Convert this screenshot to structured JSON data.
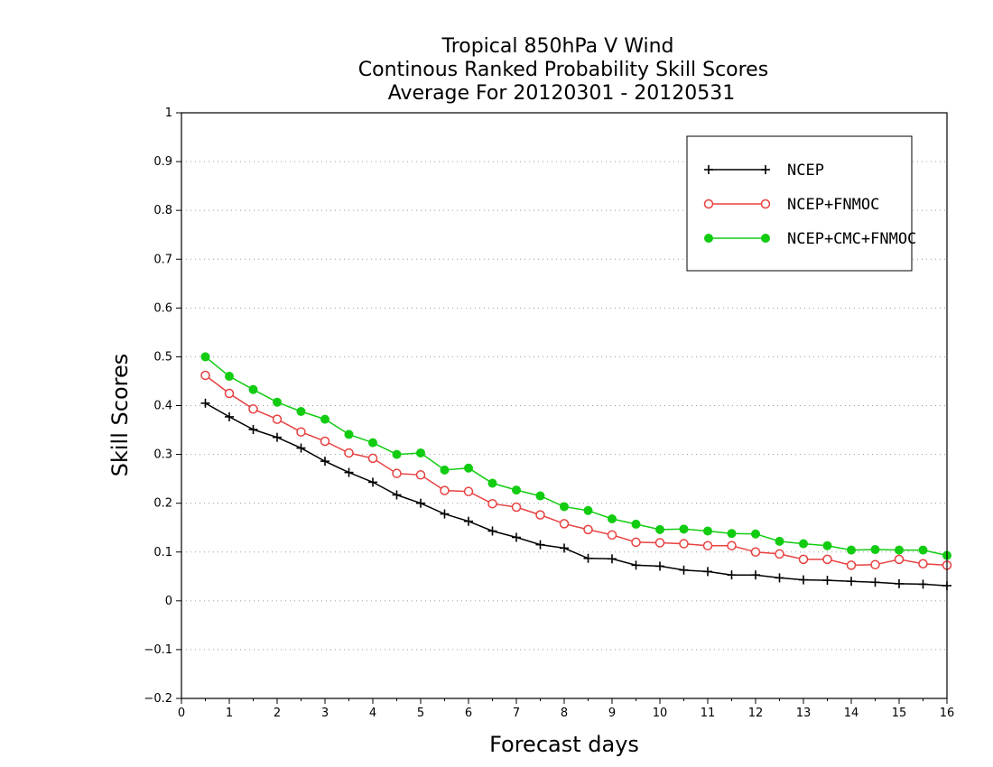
{
  "chart_data": {
    "type": "line",
    "title": [
      "Tropical 850hPa V Wind",
      "Continous Ranked Probability Skill Scores",
      "Average For 20120301 - 20120531"
    ],
    "xlabel": "Forecast days",
    "ylabel": "Skill Scores",
    "xlim": [
      0,
      16
    ],
    "ylim": [
      -0.2,
      1
    ],
    "xticks": [
      0,
      1,
      2,
      3,
      4,
      5,
      6,
      7,
      8,
      9,
      10,
      11,
      12,
      13,
      14,
      15,
      16
    ],
    "yticks": [
      -0.2,
      -0.1,
      0,
      0.1,
      0.2,
      0.3,
      0.4,
      0.5,
      0.6,
      0.7,
      0.8,
      0.9,
      1
    ],
    "ytick_labels": [
      "−0.2",
      "−0.1",
      "0",
      "0.1",
      "0.2",
      "0.3",
      "0.4",
      "0.5",
      "0.6",
      "0.7",
      "0.8",
      "0.9",
      "1"
    ],
    "grid": "horizontal dotted",
    "legend_position": "top-right",
    "x": [
      0.5,
      1,
      1.5,
      2,
      2.5,
      3,
      3.5,
      4,
      4.5,
      5,
      5.5,
      6,
      6.5,
      7,
      7.5,
      8,
      8.5,
      9,
      9.5,
      10,
      10.5,
      11,
      11.5,
      12,
      12.5,
      13,
      13.5,
      14,
      14.5,
      15,
      15.5,
      16
    ],
    "series": [
      {
        "name": "NCEP",
        "color": "#000000",
        "marker": "plus",
        "values": [
          0.405,
          0.377,
          0.351,
          0.335,
          0.313,
          0.286,
          0.263,
          0.243,
          0.217,
          0.2,
          0.178,
          0.163,
          0.143,
          0.13,
          0.115,
          0.108,
          0.087,
          0.086,
          0.073,
          0.071,
          0.063,
          0.06,
          0.053,
          0.053,
          0.047,
          0.043,
          0.042,
          0.04,
          0.038,
          0.035,
          0.034,
          0.031
        ]
      },
      {
        "name": "NCEP+FNMOC",
        "color": "#e84040",
        "marker": "open-circle",
        "values": [
          0.462,
          0.425,
          0.393,
          0.372,
          0.346,
          0.327,
          0.303,
          0.292,
          0.261,
          0.258,
          0.226,
          0.224,
          0.199,
          0.192,
          0.176,
          0.158,
          0.146,
          0.135,
          0.12,
          0.119,
          0.117,
          0.113,
          0.113,
          0.1,
          0.096,
          0.085,
          0.085,
          0.073,
          0.074,
          0.085,
          0.076,
          0.073
        ]
      },
      {
        "name": "NCEP+CMC+FNMOC",
        "color": "#12cc12",
        "marker": "filled-circle",
        "values": [
          0.5,
          0.46,
          0.433,
          0.407,
          0.388,
          0.372,
          0.341,
          0.324,
          0.3,
          0.303,
          0.268,
          0.272,
          0.241,
          0.227,
          0.215,
          0.193,
          0.185,
          0.168,
          0.157,
          0.146,
          0.147,
          0.143,
          0.138,
          0.137,
          0.122,
          0.117,
          0.113,
          0.104,
          0.105,
          0.104,
          0.104,
          0.093
        ]
      }
    ]
  }
}
